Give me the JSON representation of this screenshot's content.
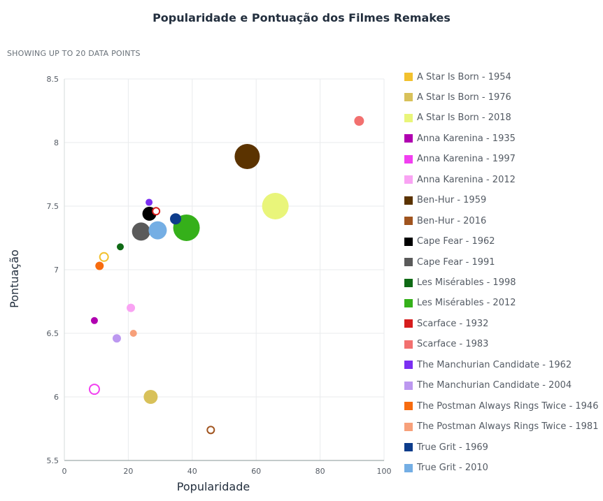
{
  "chart_data": {
    "type": "scatter",
    "title": "Popularidade e Pontuação dos Filmes Remakes",
    "subtitle": "SHOWING UP TO 20 DATA POINTS",
    "xlabel": "Popularidade",
    "ylabel": "Pontuação",
    "xlim": [
      0,
      100
    ],
    "ylim": [
      5.5,
      8.5
    ],
    "xticks": [
      "0",
      "20",
      "40",
      "60",
      "80",
      "100"
    ],
    "yticks": [
      "5.5",
      "6",
      "6.5",
      "7",
      "7.5",
      "8",
      "8.5"
    ],
    "grid": true,
    "legend_position": "right",
    "series": [
      {
        "name": "A Star Is Born - 1954",
        "color": "#f2c12e",
        "x": 12.4,
        "y": 7.1,
        "size": 6,
        "hollow": true
      },
      {
        "name": "A Star Is Born - 1976",
        "color": "#d8c15a",
        "x": 27.0,
        "y": 6.0,
        "size": 10,
        "hollow": false
      },
      {
        "name": "A Star Is Born - 2018",
        "color": "#e9f57a",
        "x": 66.0,
        "y": 7.5,
        "size": 19,
        "hollow": false
      },
      {
        "name": "Anna Karenina - 1935",
        "color": "#b000b0",
        "x": 9.4,
        "y": 6.6,
        "size": 5,
        "hollow": false
      },
      {
        "name": "Anna Karenina - 1997",
        "color": "#f13ff0",
        "x": 9.4,
        "y": 6.06,
        "size": 7,
        "hollow": true
      },
      {
        "name": "Anna Karenina - 2012",
        "color": "#f9a3f3",
        "x": 20.8,
        "y": 6.7,
        "size": 6,
        "hollow": false
      },
      {
        "name": "Ben-Hur - 1959",
        "color": "#5b3300",
        "x": 57.2,
        "y": 7.89,
        "size": 18,
        "hollow": false
      },
      {
        "name": "Ben-Hur - 2016",
        "color": "#a0541f",
        "x": 45.8,
        "y": 5.74,
        "size": 5,
        "hollow": true
      },
      {
        "name": "Cape Fear - 1962",
        "color": "#000000",
        "x": 26.6,
        "y": 7.44,
        "size": 10,
        "hollow": false
      },
      {
        "name": "Cape Fear - 1991",
        "color": "#5a5a5a",
        "x": 24.0,
        "y": 7.3,
        "size": 13,
        "hollow": false
      },
      {
        "name": "Les Misérables - 1998",
        "color": "#0f6a15",
        "x": 17.5,
        "y": 7.18,
        "size": 5,
        "hollow": false
      },
      {
        "name": "Les Misérables - 2012",
        "color": "#35b01a",
        "x": 38.2,
        "y": 7.33,
        "size": 19,
        "hollow": false
      },
      {
        "name": "Scarface - 1932",
        "color": "#d61d1d",
        "x": 28.7,
        "y": 7.46,
        "size": 5,
        "hollow": true
      },
      {
        "name": "Scarface - 1983",
        "color": "#f2706f",
        "x": 92.2,
        "y": 8.17,
        "size": 7,
        "hollow": false
      },
      {
        "name": "The Manchurian Candidate - 1962",
        "color": "#7b2ff2",
        "x": 26.5,
        "y": 7.53,
        "size": 5,
        "hollow": false
      },
      {
        "name": "The Manchurian Candidate - 2004",
        "color": "#bc98f0",
        "x": 16.4,
        "y": 6.46,
        "size": 6,
        "hollow": false
      },
      {
        "name": "The Postman Always Rings Twice - 1946",
        "color": "#f76b0f",
        "x": 11.0,
        "y": 7.03,
        "size": 6,
        "hollow": false
      },
      {
        "name": "The Postman Always Rings Twice - 1981",
        "color": "#f7a07a",
        "x": 21.6,
        "y": 6.5,
        "size": 5,
        "hollow": false
      },
      {
        "name": "True Grit - 1969",
        "color": "#0d3c8b",
        "x": 34.8,
        "y": 7.4,
        "size": 8,
        "hollow": false
      },
      {
        "name": "True Grit - 2010",
        "color": "#74aee4",
        "x": 29.2,
        "y": 7.31,
        "size": 13,
        "hollow": false
      }
    ]
  }
}
